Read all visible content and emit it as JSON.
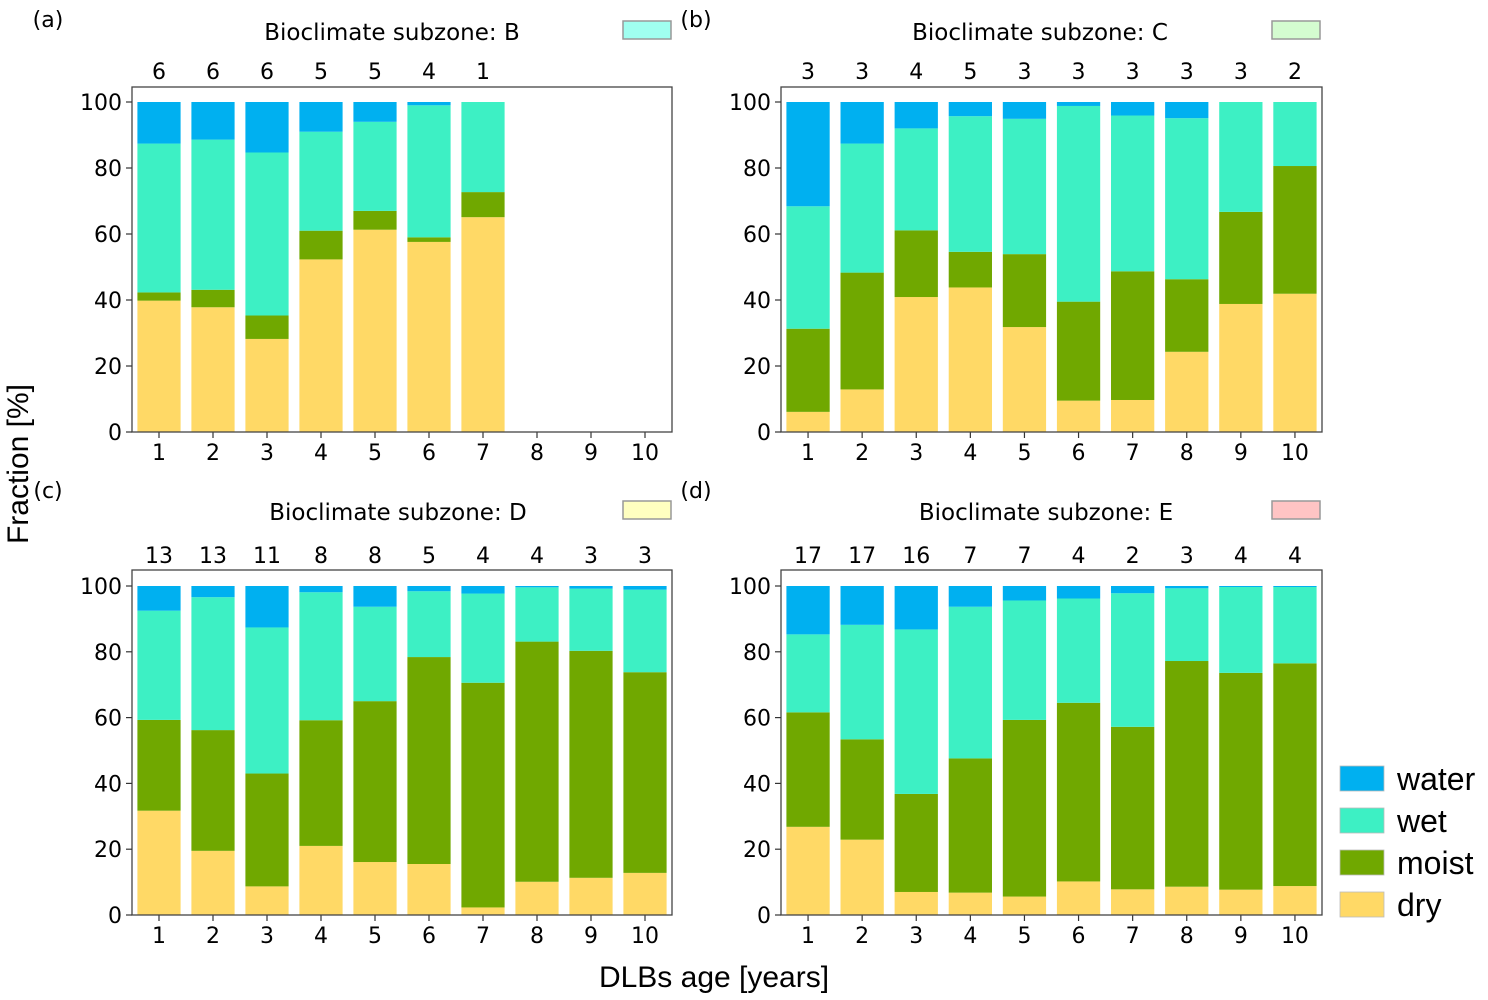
{
  "chart_data": {
    "type": "bar",
    "stacked": true,
    "ylabel": "Fraction [%]",
    "xlabel": "DLBs age [years]",
    "ylim": [
      0,
      100
    ],
    "yticks": [
      0,
      20,
      40,
      60,
      80,
      100
    ],
    "categories": [
      "1",
      "2",
      "3",
      "4",
      "5",
      "6",
      "7",
      "8",
      "9",
      "10"
    ],
    "legend": {
      "placement": "bottom-right",
      "entries": [
        {
          "name": "water",
          "color": "#00B0F0"
        },
        {
          "name": "wet",
          "color": "#3DF0C4"
        },
        {
          "name": "moist",
          "color": "#70A800"
        },
        {
          "name": "dry",
          "color": "#FFD966"
        }
      ]
    },
    "panels": [
      {
        "label": "(a)",
        "title": "Bioclimate subzone: B",
        "swatch_color": "#A0FFF0",
        "counts": [
          "6",
          "6",
          "6",
          "5",
          "5",
          "4",
          "1",
          "",
          "",
          ""
        ],
        "series": [
          {
            "name": "dry",
            "values": [
              39.8,
              37.8,
              28.2,
              52.3,
              61.3,
              57.6,
              65.1,
              null,
              null,
              null
            ]
          },
          {
            "name": "moist",
            "values": [
              2.5,
              5.3,
              7.1,
              8.7,
              5.7,
              1.4,
              7.6,
              null,
              null,
              null
            ]
          },
          {
            "name": "wet",
            "values": [
              45.1,
              45.5,
              49.4,
              30.0,
              27.0,
              40.0,
              27.3,
              null,
              null,
              null
            ]
          },
          {
            "name": "water",
            "values": [
              12.6,
              11.4,
              15.3,
              9.0,
              6.0,
              1.0,
              0.0,
              null,
              null,
              null
            ]
          }
        ]
      },
      {
        "label": "(b)",
        "title": "Bioclimate subzone: C",
        "swatch_color": "#D4FCD0",
        "counts": [
          "3",
          "3",
          "4",
          "5",
          "3",
          "3",
          "3",
          "3",
          "3",
          "2"
        ],
        "series": [
          {
            "name": "dry",
            "values": [
              6.1,
              12.9,
              40.9,
              43.8,
              31.8,
              9.5,
              9.7,
              24.3,
              38.8,
              41.9
            ]
          },
          {
            "name": "moist",
            "values": [
              25.2,
              35.4,
              20.2,
              10.8,
              22.1,
              30.0,
              39.0,
              22.0,
              27.9,
              38.7
            ]
          },
          {
            "name": "wet",
            "values": [
              37.1,
              39.1,
              30.9,
              41.1,
              41.0,
              59.3,
              47.2,
              48.8,
              33.3,
              19.4
            ]
          },
          {
            "name": "water",
            "values": [
              31.6,
              12.6,
              8.0,
              4.3,
              5.1,
              1.2,
              4.1,
              4.9,
              0.0,
              0.0
            ]
          }
        ]
      },
      {
        "label": "(c)",
        "title": "Bioclimate subzone: D",
        "swatch_color": "#FFFFC0",
        "counts": [
          "13",
          "13",
          "11",
          "8",
          "8",
          "5",
          "4",
          "4",
          "3",
          "3"
        ],
        "series": [
          {
            "name": "dry",
            "values": [
              31.7,
              19.5,
              8.7,
              21.0,
              16.1,
              15.5,
              2.3,
              10.1,
              11.3,
              12.8
            ]
          },
          {
            "name": "moist",
            "values": [
              27.6,
              36.7,
              34.3,
              38.2,
              48.9,
              62.9,
              68.3,
              73.0,
              69.0,
              61.0
            ]
          },
          {
            "name": "wet",
            "values": [
              33.2,
              40.4,
              44.4,
              38.9,
              28.7,
              20.0,
              27.1,
              16.5,
              18.9,
              25.1
            ]
          },
          {
            "name": "water",
            "values": [
              7.5,
              3.4,
              12.6,
              1.9,
              6.3,
              1.6,
              2.3,
              0.4,
              0.8,
              1.1
            ]
          }
        ]
      },
      {
        "label": "(d)",
        "title": "Bioclimate subzone: E",
        "swatch_color": "#FFC4C4",
        "counts": [
          "17",
          "17",
          "16",
          "7",
          "7",
          "4",
          "2",
          "3",
          "4",
          "4"
        ],
        "series": [
          {
            "name": "dry",
            "values": [
              26.8,
              22.9,
              7.0,
              6.8,
              5.6,
              10.2,
              7.8,
              8.6,
              7.7,
              8.8
            ]
          },
          {
            "name": "moist",
            "values": [
              34.8,
              30.5,
              29.8,
              40.8,
              53.7,
              54.3,
              49.4,
              68.6,
              65.9,
              67.7
            ]
          },
          {
            "name": "wet",
            "values": [
              23.7,
              34.8,
              50.0,
              46.1,
              36.3,
              31.7,
              40.6,
              22.1,
              26.1,
              23.2
            ]
          },
          {
            "name": "water",
            "values": [
              14.7,
              11.8,
              13.2,
              6.3,
              4.4,
              3.8,
              2.2,
              0.7,
              0.3,
              0.3
            ]
          }
        ]
      }
    ]
  }
}
